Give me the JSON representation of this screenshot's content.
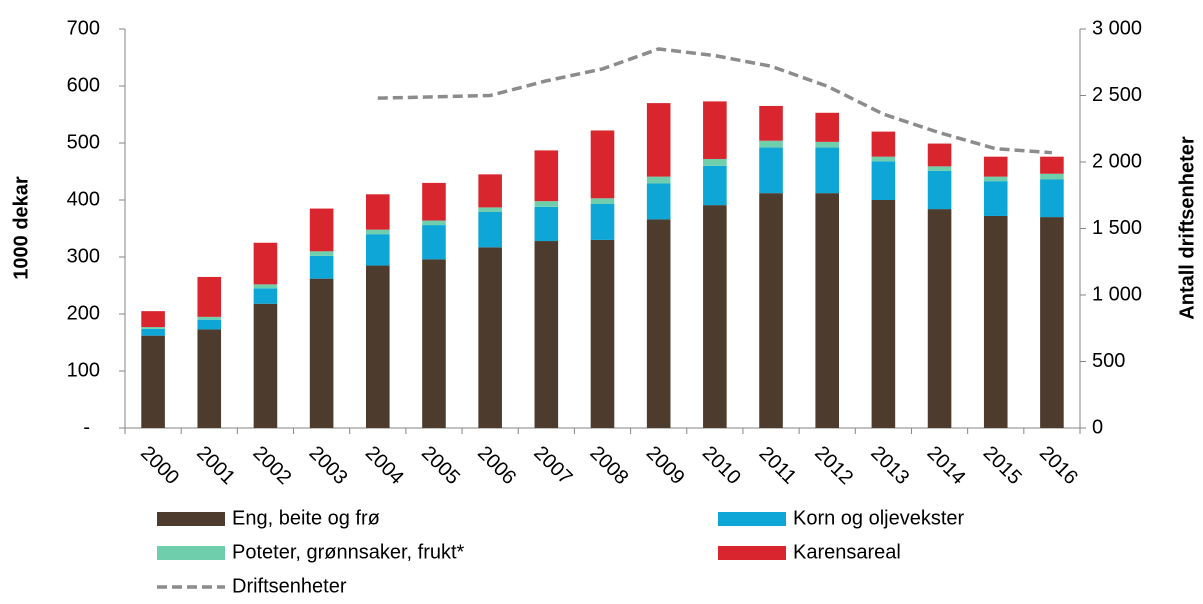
{
  "chart_data": {
    "type": "bar",
    "stacked": true,
    "ylabel": "1000 dekar",
    "y2label": "Antall driftsenheter",
    "categories": [
      "2000",
      "2001",
      "2002",
      "2003",
      "2004",
      "2005",
      "2006",
      "2007",
      "2008",
      "2009",
      "2010",
      "2011",
      "2012",
      "2013",
      "2014",
      "2015",
      "2016"
    ],
    "series": [
      {
        "name": "Eng, beite og frø",
        "color": "#4d3b2d",
        "values": [
          162,
          173,
          218,
          262,
          285,
          296,
          317,
          328,
          330,
          366,
          391,
          412,
          412,
          400,
          384,
          372,
          370
        ]
      },
      {
        "name": "Korn og oljevekster",
        "color": "#0ea6d6",
        "values": [
          12,
          17,
          27,
          40,
          55,
          60,
          62,
          60,
          63,
          63,
          69,
          80,
          80,
          68,
          67,
          61,
          66
        ]
      },
      {
        "name": "Poteter, grønnsaker, frukt*",
        "color": "#6fcfad",
        "values": [
          3,
          5,
          7,
          8,
          8,
          8,
          8,
          10,
          10,
          12,
          12,
          12,
          10,
          8,
          8,
          8,
          10
        ]
      },
      {
        "name": "Karensareal",
        "color": "#d9262e",
        "values": [
          28,
          70,
          73,
          75,
          62,
          66,
          58,
          89,
          119,
          129,
          101,
          61,
          51,
          44,
          40,
          35,
          30
        ]
      },
      {
        "name": "Driftsenheter",
        "type": "line",
        "axis": "y2",
        "line_style": "dashed",
        "color": "#8c8c8c",
        "values": [
          null,
          null,
          null,
          null,
          2480,
          2490,
          2500,
          2610,
          2700,
          2850,
          2800,
          2720,
          2570,
          2360,
          2220,
          2100,
          2070
        ]
      }
    ],
    "ylim": [
      0,
      700
    ],
    "yticks": [
      {
        "value": 0,
        "label": "-"
      },
      100,
      200,
      300,
      400,
      500,
      600,
      700
    ],
    "y2lim": [
      0,
      3000
    ],
    "y2ticks": [
      0,
      500,
      {
        "value": 1000,
        "label": "1 000"
      },
      {
        "value": 1500,
        "label": "1 500"
      },
      {
        "value": 2000,
        "label": "2 000"
      },
      {
        "value": 2500,
        "label": "2 500"
      },
      {
        "value": 3000,
        "label": "3 000"
      }
    ],
    "grid": false
  }
}
